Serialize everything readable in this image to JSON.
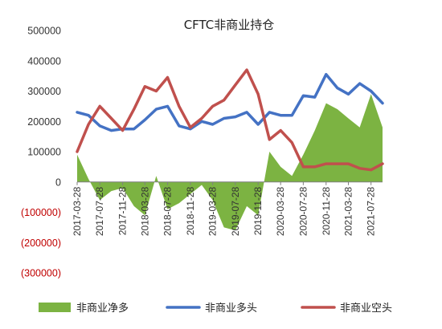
{
  "chart_data": {
    "type": "line",
    "title": "CFTC非商业持仓",
    "xlabel": "",
    "ylabel": "",
    "ylim": [
      -300000,
      500000
    ],
    "y_ticks": [
      {
        "value": 500000,
        "label": "500000"
      },
      {
        "value": 400000,
        "label": "400000"
      },
      {
        "value": 300000,
        "label": "300000"
      },
      {
        "value": 200000,
        "label": "200000"
      },
      {
        "value": 100000,
        "label": "100000"
      },
      {
        "value": 0,
        "label": "0"
      },
      {
        "value": -100000,
        "label": "(100000)"
      },
      {
        "value": -200000,
        "label": "(200000)"
      },
      {
        "value": -300000,
        "label": "(300000)"
      }
    ],
    "negative_label_color": "#C00000",
    "x_tick_labels": [
      "2017-03-28",
      "2017-07-28",
      "2017-11-28",
      "2018-03-28",
      "2018-07-28",
      "2018-11-28",
      "2019-03-28",
      "2019-07-28",
      "2019-11-28",
      "2020-03-28",
      "2020-07-28",
      "2020-11-28",
      "2021-03-28",
      "2021-07-28"
    ],
    "x_range": [
      "2017-03-28",
      "2021-09-28"
    ],
    "grid": false,
    "legend_position": "bottom",
    "x": [
      "2017-03-28",
      "2017-05-28",
      "2017-07-28",
      "2017-09-28",
      "2017-11-28",
      "2018-01-28",
      "2018-03-28",
      "2018-05-28",
      "2018-07-28",
      "2018-09-28",
      "2018-11-28",
      "2019-01-28",
      "2019-03-28",
      "2019-05-28",
      "2019-07-28",
      "2019-09-28",
      "2019-11-28",
      "2020-01-28",
      "2020-03-28",
      "2020-05-28",
      "2020-07-28",
      "2020-09-28",
      "2020-11-28",
      "2021-01-28",
      "2021-03-28",
      "2021-05-28",
      "2021-07-28",
      "2021-09-28"
    ],
    "series": [
      {
        "name": "非商业净多",
        "type": "area",
        "color": "#7CB342",
        "values": [
          90000,
          10000,
          -60000,
          -30000,
          -20000,
          -80000,
          -110000,
          20000,
          -90000,
          -70000,
          -40000,
          -10000,
          -60000,
          -150000,
          -160000,
          -80000,
          -110000,
          100000,
          50000,
          20000,
          90000,
          170000,
          260000,
          240000,
          210000,
          180000,
          290000,
          180000
        ]
      },
      {
        "name": "非商业多头",
        "type": "line",
        "color": "#4472C4",
        "values": [
          230000,
          220000,
          185000,
          170000,
          175000,
          175000,
          205000,
          240000,
          250000,
          185000,
          175000,
          200000,
          190000,
          210000,
          215000,
          230000,
          190000,
          230000,
          220000,
          220000,
          285000,
          280000,
          355000,
          310000,
          290000,
          325000,
          300000,
          260000
        ]
      },
      {
        "name": "非商业空头",
        "type": "line",
        "color": "#C0504D",
        "values": [
          100000,
          190000,
          250000,
          210000,
          170000,
          240000,
          315000,
          300000,
          345000,
          250000,
          180000,
          210000,
          250000,
          270000,
          320000,
          370000,
          290000,
          140000,
          170000,
          130000,
          50000,
          50000,
          60000,
          60000,
          60000,
          45000,
          40000,
          60000
        ]
      }
    ]
  }
}
